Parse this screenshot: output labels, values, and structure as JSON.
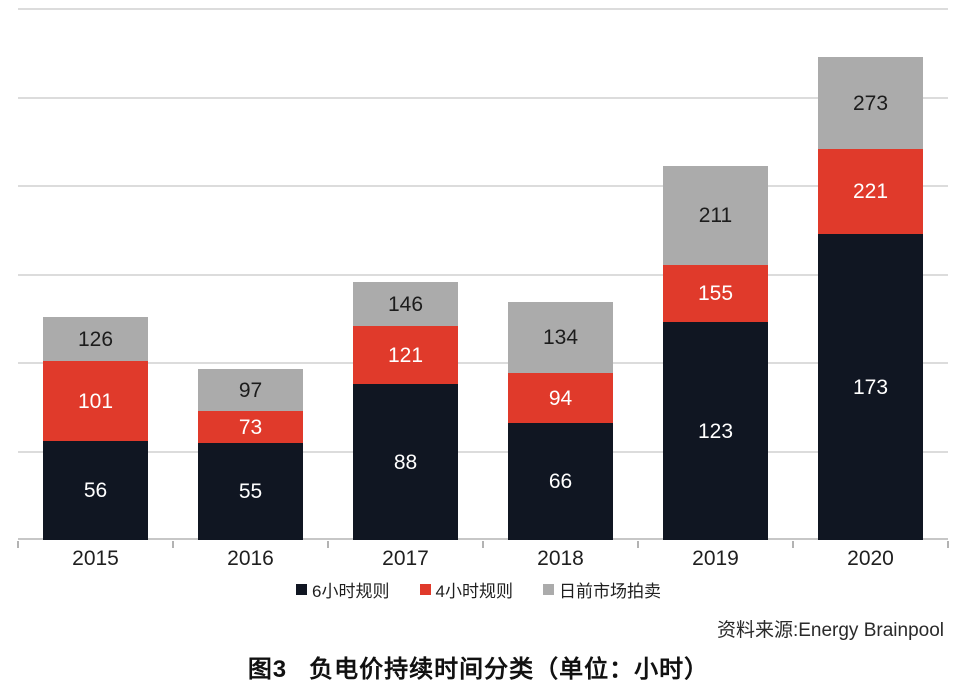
{
  "chart_data": {
    "type": "bar",
    "stacked": true,
    "title": "",
    "xlabel": "",
    "ylabel": "",
    "categories": [
      "2015",
      "2016",
      "2017",
      "2018",
      "2019",
      "2020"
    ],
    "series": [
      {
        "name": "6小时规则",
        "color": "#101622",
        "label_color": "#ffffff",
        "values": [
          56,
          55,
          88,
          66,
          123,
          173
        ],
        "labels": [
          "56",
          "55",
          "88",
          "66",
          "123",
          "173"
        ]
      },
      {
        "name": "4小时规则",
        "color": "#e03a2b",
        "label_color": "#ffffff",
        "values": [
          45,
          18,
          33,
          28,
          32,
          48
        ],
        "labels": [
          "101",
          "73",
          "121",
          "94",
          "155",
          "221"
        ]
      },
      {
        "name": "日前市场拍卖",
        "color": "#ababab",
        "label_color": "#1c1c1c",
        "values": [
          25,
          24,
          25,
          40,
          56,
          52
        ],
        "labels": [
          "126",
          "97",
          "146",
          "134",
          "211",
          "273"
        ]
      }
    ],
    "value_labels": "cumulative",
    "ylim": [
      0,
      300
    ],
    "gridline_step": 50,
    "grid": true,
    "legend_position": "bottom"
  },
  "source_label": "资料来源:Energy Brainpool",
  "caption": {
    "prefix": "图3",
    "text": "负电价持续时间分类（单位：小时）"
  }
}
